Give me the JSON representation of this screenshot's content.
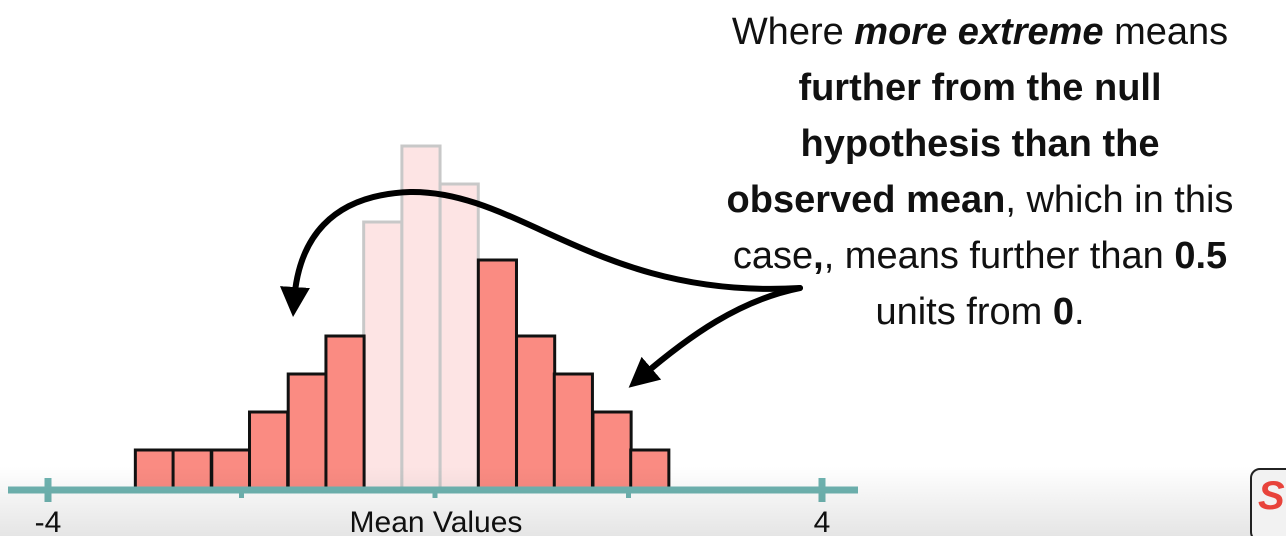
{
  "chart_data": {
    "type": "bar",
    "title": "",
    "xlabel": "Mean Values",
    "ylabel": "",
    "xlim": [
      -4,
      4
    ],
    "ylim": [
      0,
      9
    ],
    "tick_labels": [
      {
        "value": -4,
        "label": "-4"
      },
      {
        "value": 4,
        "label": "4"
      }
    ],
    "minor_ticks": [
      -2,
      0,
      2
    ],
    "bin_width": 0.3944,
    "bins": [
      {
        "center": -2.9,
        "count": 1,
        "extreme": true
      },
      {
        "center": -2.51,
        "count": 1,
        "extreme": true
      },
      {
        "center": -2.11,
        "count": 1,
        "extreme": true
      },
      {
        "center": -1.72,
        "count": 2,
        "extreme": true
      },
      {
        "center": -1.32,
        "count": 3,
        "extreme": true
      },
      {
        "center": -0.93,
        "count": 4,
        "extreme": true
      },
      {
        "center": -0.54,
        "count": 7,
        "extreme": false
      },
      {
        "center": -0.145,
        "count": 9,
        "extreme": false
      },
      {
        "center": 0.25,
        "count": 8,
        "extreme": false
      },
      {
        "center": 0.645,
        "count": 6,
        "extreme": true
      },
      {
        "center": 1.04,
        "count": 4,
        "extreme": true
      },
      {
        "center": 1.43,
        "count": 3,
        "extreme": true
      },
      {
        "center": 1.83,
        "count": 2,
        "extreme": true
      },
      {
        "center": 2.22,
        "count": 1,
        "extreme": true
      }
    ],
    "colors": {
      "extreme": "#fa8b82",
      "not_extreme": "#fde4e4",
      "extreme_stroke": "#111111",
      "not_extreme_stroke": "#c8c8c8",
      "axis": "#6fb4b1",
      "arrow": "#000000"
    }
  },
  "callout": {
    "line1_a": "Where ",
    "line1_b": "more extreme",
    "line1_c": " means",
    "line2": "further from the null",
    "line3": "hypothesis than the",
    "line4_a": "observed mean",
    "line4_b": ", which in this",
    "line5_a": "case",
    "line5_b": ", means further than ",
    "line5_c": "0.5",
    "line6_a": "units from ",
    "line6_b": "0",
    "line6_c": "."
  },
  "logo": {
    "text": "S"
  }
}
